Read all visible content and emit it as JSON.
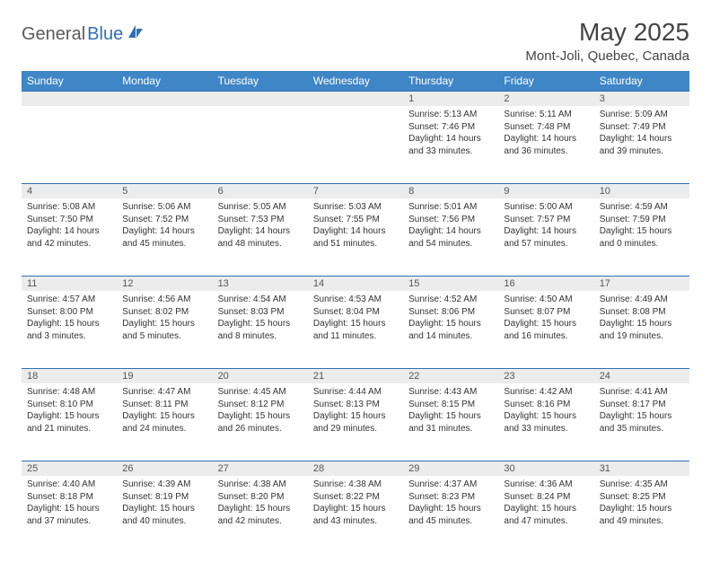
{
  "brand": {
    "part1": "General",
    "part2": "Blue"
  },
  "title": "May 2025",
  "location": "Mont-Joli, Quebec, Canada",
  "colors": {
    "header_bg": "#3f86c6",
    "header_text": "#ffffff",
    "rule": "#2e6fb4",
    "daynum_bg": "#ececec",
    "text": "#333333",
    "brand_gray": "#5a5a5a",
    "brand_blue": "#2e6fb4",
    "page_bg": "#ffffff"
  },
  "days_of_week": [
    "Sunday",
    "Monday",
    "Tuesday",
    "Wednesday",
    "Thursday",
    "Friday",
    "Saturday"
  ],
  "weeks": [
    [
      null,
      null,
      null,
      null,
      {
        "n": "1",
        "sr": "Sunrise: 5:13 AM",
        "ss": "Sunset: 7:46 PM",
        "d1": "Daylight: 14 hours",
        "d2": "and 33 minutes."
      },
      {
        "n": "2",
        "sr": "Sunrise: 5:11 AM",
        "ss": "Sunset: 7:48 PM",
        "d1": "Daylight: 14 hours",
        "d2": "and 36 minutes."
      },
      {
        "n": "3",
        "sr": "Sunrise: 5:09 AM",
        "ss": "Sunset: 7:49 PM",
        "d1": "Daylight: 14 hours",
        "d2": "and 39 minutes."
      }
    ],
    [
      {
        "n": "4",
        "sr": "Sunrise: 5:08 AM",
        "ss": "Sunset: 7:50 PM",
        "d1": "Daylight: 14 hours",
        "d2": "and 42 minutes."
      },
      {
        "n": "5",
        "sr": "Sunrise: 5:06 AM",
        "ss": "Sunset: 7:52 PM",
        "d1": "Daylight: 14 hours",
        "d2": "and 45 minutes."
      },
      {
        "n": "6",
        "sr": "Sunrise: 5:05 AM",
        "ss": "Sunset: 7:53 PM",
        "d1": "Daylight: 14 hours",
        "d2": "and 48 minutes."
      },
      {
        "n": "7",
        "sr": "Sunrise: 5:03 AM",
        "ss": "Sunset: 7:55 PM",
        "d1": "Daylight: 14 hours",
        "d2": "and 51 minutes."
      },
      {
        "n": "8",
        "sr": "Sunrise: 5:01 AM",
        "ss": "Sunset: 7:56 PM",
        "d1": "Daylight: 14 hours",
        "d2": "and 54 minutes."
      },
      {
        "n": "9",
        "sr": "Sunrise: 5:00 AM",
        "ss": "Sunset: 7:57 PM",
        "d1": "Daylight: 14 hours",
        "d2": "and 57 minutes."
      },
      {
        "n": "10",
        "sr": "Sunrise: 4:59 AM",
        "ss": "Sunset: 7:59 PM",
        "d1": "Daylight: 15 hours",
        "d2": "and 0 minutes."
      }
    ],
    [
      {
        "n": "11",
        "sr": "Sunrise: 4:57 AM",
        "ss": "Sunset: 8:00 PM",
        "d1": "Daylight: 15 hours",
        "d2": "and 3 minutes."
      },
      {
        "n": "12",
        "sr": "Sunrise: 4:56 AM",
        "ss": "Sunset: 8:02 PM",
        "d1": "Daylight: 15 hours",
        "d2": "and 5 minutes."
      },
      {
        "n": "13",
        "sr": "Sunrise: 4:54 AM",
        "ss": "Sunset: 8:03 PM",
        "d1": "Daylight: 15 hours",
        "d2": "and 8 minutes."
      },
      {
        "n": "14",
        "sr": "Sunrise: 4:53 AM",
        "ss": "Sunset: 8:04 PM",
        "d1": "Daylight: 15 hours",
        "d2": "and 11 minutes."
      },
      {
        "n": "15",
        "sr": "Sunrise: 4:52 AM",
        "ss": "Sunset: 8:06 PM",
        "d1": "Daylight: 15 hours",
        "d2": "and 14 minutes."
      },
      {
        "n": "16",
        "sr": "Sunrise: 4:50 AM",
        "ss": "Sunset: 8:07 PM",
        "d1": "Daylight: 15 hours",
        "d2": "and 16 minutes."
      },
      {
        "n": "17",
        "sr": "Sunrise: 4:49 AM",
        "ss": "Sunset: 8:08 PM",
        "d1": "Daylight: 15 hours",
        "d2": "and 19 minutes."
      }
    ],
    [
      {
        "n": "18",
        "sr": "Sunrise: 4:48 AM",
        "ss": "Sunset: 8:10 PM",
        "d1": "Daylight: 15 hours",
        "d2": "and 21 minutes."
      },
      {
        "n": "19",
        "sr": "Sunrise: 4:47 AM",
        "ss": "Sunset: 8:11 PM",
        "d1": "Daylight: 15 hours",
        "d2": "and 24 minutes."
      },
      {
        "n": "20",
        "sr": "Sunrise: 4:45 AM",
        "ss": "Sunset: 8:12 PM",
        "d1": "Daylight: 15 hours",
        "d2": "and 26 minutes."
      },
      {
        "n": "21",
        "sr": "Sunrise: 4:44 AM",
        "ss": "Sunset: 8:13 PM",
        "d1": "Daylight: 15 hours",
        "d2": "and 29 minutes."
      },
      {
        "n": "22",
        "sr": "Sunrise: 4:43 AM",
        "ss": "Sunset: 8:15 PM",
        "d1": "Daylight: 15 hours",
        "d2": "and 31 minutes."
      },
      {
        "n": "23",
        "sr": "Sunrise: 4:42 AM",
        "ss": "Sunset: 8:16 PM",
        "d1": "Daylight: 15 hours",
        "d2": "and 33 minutes."
      },
      {
        "n": "24",
        "sr": "Sunrise: 4:41 AM",
        "ss": "Sunset: 8:17 PM",
        "d1": "Daylight: 15 hours",
        "d2": "and 35 minutes."
      }
    ],
    [
      {
        "n": "25",
        "sr": "Sunrise: 4:40 AM",
        "ss": "Sunset: 8:18 PM",
        "d1": "Daylight: 15 hours",
        "d2": "and 37 minutes."
      },
      {
        "n": "26",
        "sr": "Sunrise: 4:39 AM",
        "ss": "Sunset: 8:19 PM",
        "d1": "Daylight: 15 hours",
        "d2": "and 40 minutes."
      },
      {
        "n": "27",
        "sr": "Sunrise: 4:38 AM",
        "ss": "Sunset: 8:20 PM",
        "d1": "Daylight: 15 hours",
        "d2": "and 42 minutes."
      },
      {
        "n": "28",
        "sr": "Sunrise: 4:38 AM",
        "ss": "Sunset: 8:22 PM",
        "d1": "Daylight: 15 hours",
        "d2": "and 43 minutes."
      },
      {
        "n": "29",
        "sr": "Sunrise: 4:37 AM",
        "ss": "Sunset: 8:23 PM",
        "d1": "Daylight: 15 hours",
        "d2": "and 45 minutes."
      },
      {
        "n": "30",
        "sr": "Sunrise: 4:36 AM",
        "ss": "Sunset: 8:24 PM",
        "d1": "Daylight: 15 hours",
        "d2": "and 47 minutes."
      },
      {
        "n": "31",
        "sr": "Sunrise: 4:35 AM",
        "ss": "Sunset: 8:25 PM",
        "d1": "Daylight: 15 hours",
        "d2": "and 49 minutes."
      }
    ]
  ]
}
